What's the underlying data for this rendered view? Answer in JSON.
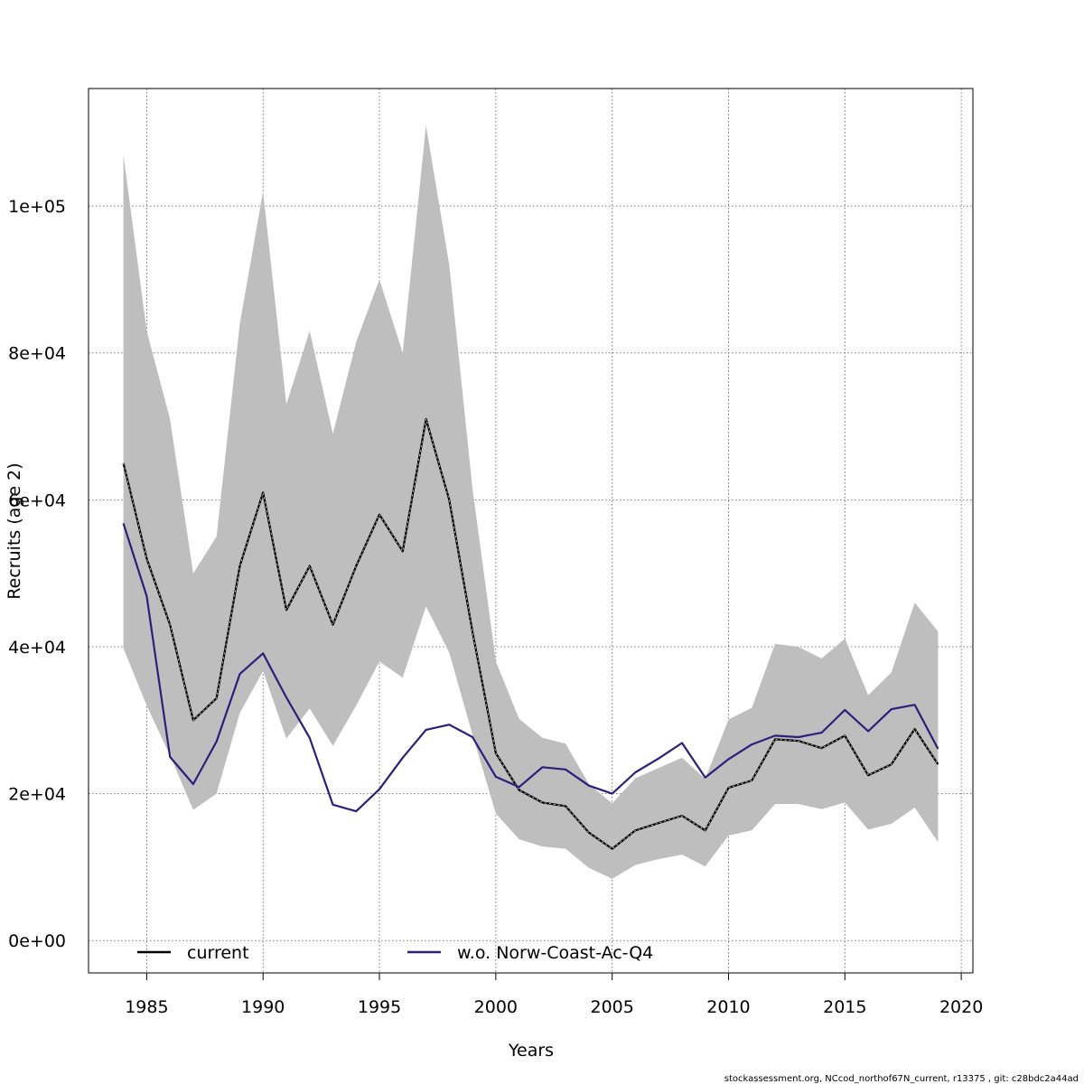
{
  "chart_data": {
    "type": "line",
    "title": "",
    "xlabel": "Years",
    "ylabel": "Recruits (age 2)",
    "xlim": [
      1982.5,
      2020.5
    ],
    "ylim": [
      -4400,
      116000
    ],
    "x_ticks": [
      1985,
      1990,
      1995,
      2000,
      2005,
      2010,
      2015,
      2020
    ],
    "x_tick_labels": [
      "1985",
      "1990",
      "1995",
      "2000",
      "2005",
      "2010",
      "2015",
      "2020"
    ],
    "y_ticks": [
      0,
      20000,
      40000,
      60000,
      80000,
      100000
    ],
    "y_tick_labels": [
      "0e+00",
      "2e+04",
      "4e+04",
      "6e+04",
      "8e+04",
      "1e+05"
    ],
    "grid": true,
    "legend_position": "bottom",
    "x": [
      1984,
      1985,
      1986,
      1987,
      1988,
      1989,
      1990,
      1991,
      1992,
      1993,
      1994,
      1995,
      1996,
      1997,
      1998,
      1999,
      2000,
      2001,
      2002,
      2003,
      2004,
      2005,
      2006,
      2007,
      2008,
      2009,
      2010,
      2011,
      2012,
      2013,
      2014,
      2015,
      2016,
      2017,
      2018,
      2019
    ],
    "series": [
      {
        "name": "current",
        "color": "#000000",
        "values": [
          65000,
          52000,
          43000,
          30000,
          33000,
          51000,
          61000,
          45000,
          51000,
          43000,
          51000,
          58000,
          53000,
          71000,
          60000,
          42000,
          25500,
          20500,
          18800,
          18300,
          14700,
          12500,
          15000,
          16000,
          17000,
          15000,
          20800,
          21800,
          27400,
          27200,
          26200,
          27900,
          22500,
          24000,
          28800,
          24000
        ]
      },
      {
        "name": "w.o. Norw-Coast-Ac-Q4",
        "color": "#2b1f7c",
        "values": [
          56800,
          46900,
          25000,
          21300,
          27100,
          36300,
          39100,
          33100,
          27600,
          18500,
          17600,
          20600,
          24900,
          28700,
          29400,
          27700,
          22300,
          20900,
          23600,
          23300,
          21100,
          20000,
          22900,
          24800,
          26900,
          22200,
          24700,
          26700,
          27900,
          27700,
          28300,
          31400,
          28500,
          31500,
          32100,
          26100
        ]
      }
    ],
    "band": {
      "color": "#bebebe",
      "lower": [
        39800,
        32000,
        25200,
        17800,
        20000,
        31000,
        36700,
        27500,
        31600,
        26500,
        32000,
        38000,
        35800,
        45500,
        39200,
        28000,
        17300,
        13800,
        12800,
        12500,
        9900,
        8400,
        10300,
        11100,
        11700,
        10100,
        14300,
        15000,
        18600,
        18600,
        17900,
        18800,
        15100,
        15900,
        18100,
        13400
      ],
      "upper": [
        107000,
        83000,
        71000,
        50000,
        55000,
        84000,
        102000,
        73000,
        83000,
        69000,
        81500,
        90000,
        80000,
        111000,
        92000,
        61500,
        38000,
        30200,
        27600,
        26800,
        21300,
        18700,
        22100,
        23500,
        24900,
        22000,
        30100,
        31700,
        40400,
        40000,
        38400,
        41100,
        33400,
        36500,
        46000,
        42100
      ]
    }
  },
  "footer_text": "stockassessment.org, NCcod_northof67N_current, r13375 , git: c28bdc2a44ad"
}
